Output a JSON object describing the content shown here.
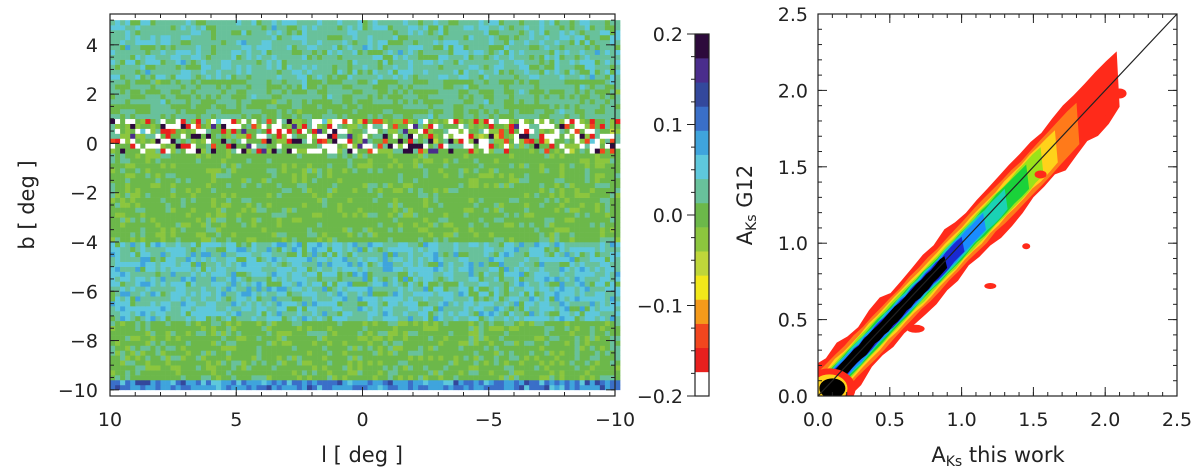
{
  "chart_data": [
    {
      "type": "heatmap",
      "xlabel": "l [ deg ]",
      "ylabel": "b [ deg ]",
      "xlim": [
        10,
        -10
      ],
      "ylim": [
        -10.25,
        5.25
      ],
      "x_ticks": [
        10,
        5,
        0,
        -5,
        -10
      ],
      "y_ticks": [
        4,
        2,
        0,
        -2,
        -4,
        -6,
        -8,
        -10
      ],
      "x_tick_labels": [
        "10",
        "5",
        "0",
        "−5",
        "−10"
      ],
      "y_tick_labels": [
        "4",
        "2",
        "0",
        "−2",
        "−4",
        "−6",
        "−8",
        "−10"
      ],
      "grid": false,
      "colorbar": {
        "range": [
          -0.2,
          0.2
        ],
        "tick_values": [
          0.2,
          0.1,
          0.0,
          -0.1,
          -0.2
        ],
        "tick_labels": [
          "0.2",
          "0.1",
          "0.0",
          "−0.1",
          "−0.2"
        ],
        "colors": [
          "#ffffff",
          "#e8201e",
          "#f2461e",
          "#f59a1a",
          "#f2e81a",
          "#bfd63a",
          "#8cc63e",
          "#6cb84a",
          "#68c19b",
          "#5ec8dc",
          "#3fa4dc",
          "#3a6fc8",
          "#33489c",
          "#4a2d8c",
          "#2d0a3c"
        ]
      },
      "features": {
        "plane_band_b": [
          -0.5,
          0.9
        ],
        "value_typical": 0.0
      }
    },
    {
      "type": "scatter",
      "render": "density",
      "xlabel": "A_Ks this work",
      "ylabel": "A_Ks G12",
      "xlim": [
        0.0,
        2.5
      ],
      "ylim": [
        0.0,
        2.5
      ],
      "x_ticks": [
        0.0,
        0.5,
        1.0,
        1.5,
        2.0,
        2.5
      ],
      "y_ticks": [
        0.0,
        0.5,
        1.0,
        1.5,
        2.0,
        2.5
      ],
      "x_tick_labels": [
        "0.0",
        "0.5",
        "1.0",
        "1.5",
        "2.0",
        "2.5"
      ],
      "y_tick_labels": [
        "0.0",
        "0.5",
        "1.0",
        "1.5",
        "2.0",
        "2.5"
      ],
      "grid": false,
      "reference_line": {
        "x": [
          0.0,
          2.5
        ],
        "y": [
          0.0,
          2.5
        ]
      },
      "density_ridge": {
        "x": [
          0.05,
          0.2,
          0.5,
          0.8,
          1.1,
          1.4,
          1.7,
          2.0
        ],
        "y": [
          0.03,
          0.18,
          0.48,
          0.8,
          1.12,
          1.44,
          1.76,
          1.98
        ]
      },
      "density_colors": [
        "#ff2a1a",
        "#ff7a1a",
        "#ffd21a",
        "#9be21a",
        "#1ad23a",
        "#1ad2b4",
        "#1a8cff",
        "#1a2ad2",
        "#000000"
      ]
    }
  ]
}
